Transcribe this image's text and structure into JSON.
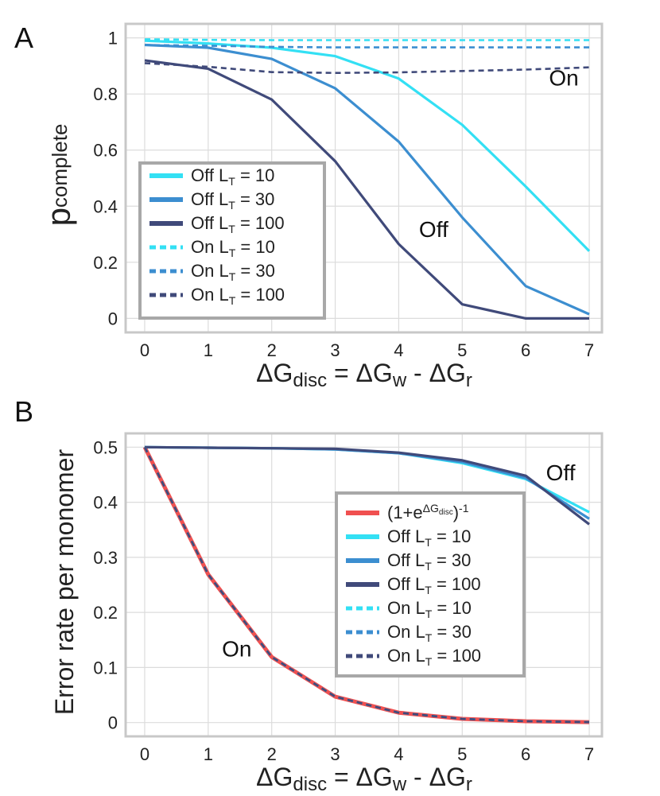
{
  "colors": {
    "lt10": "#33e0f4",
    "lt30": "#3c8ed0",
    "lt100": "#404a7a",
    "formula": "#f05050",
    "frame": "#c8c8c8",
    "legend_frame": "#a8a8a8",
    "grid": "#dcdcdc"
  },
  "chart_data": [
    {
      "panel": "A",
      "type": "line",
      "xlabel": {
        "main": "ΔG",
        "sub": "disc",
        "eq": " = ΔG",
        "sub2": "w",
        "mid": " - ΔG",
        "sub3": "r"
      },
      "ylabel": {
        "main": "p",
        "sub": "complete"
      },
      "xlim": [
        -0.3,
        7.2
      ],
      "ylim": [
        -0.05,
        1.05
      ],
      "x_ticks": [
        "0",
        "1",
        "2",
        "3",
        "4",
        "5",
        "6",
        "7"
      ],
      "y_ticks": [
        {
          "v": 0,
          "label": "0"
        },
        {
          "v": 0.2,
          "label": "0.2"
        },
        {
          "v": 0.4,
          "label": "0.4"
        },
        {
          "v": 0.6,
          "label": "0.6"
        },
        {
          "v": 0.8,
          "label": "0.8"
        },
        {
          "v": 1,
          "label": "1"
        }
      ],
      "grid": true,
      "legend_position": "lower-left",
      "x": [
        0,
        1,
        2,
        3,
        4,
        5,
        6,
        7
      ],
      "series": [
        {
          "label": "Off L",
          "sub": "T",
          "tail": " = 10",
          "key": "lt10",
          "dash": false,
          "values": [
            0.99,
            0.98,
            0.965,
            0.935,
            0.855,
            0.69,
            0.47,
            0.24
          ]
        },
        {
          "label": "Off L",
          "sub": "T",
          "tail": " = 30",
          "key": "lt30",
          "dash": false,
          "values": [
            0.975,
            0.965,
            0.925,
            0.82,
            0.63,
            0.36,
            0.115,
            0.015
          ]
        },
        {
          "label": "Off L",
          "sub": "T",
          "tail": " = 100",
          "key": "lt100",
          "dash": false,
          "values": [
            0.92,
            0.89,
            0.78,
            0.56,
            0.265,
            0.05,
            0.0,
            0.0
          ]
        },
        {
          "label": "On L",
          "sub": "T",
          "tail": " = 10",
          "key": "lt10",
          "dash": true,
          "values": [
            0.995,
            0.993,
            0.992,
            0.992,
            0.992,
            0.992,
            0.992,
            0.992
          ]
        },
        {
          "label": "On L",
          "sub": "T",
          "tail": " = 30",
          "key": "lt30",
          "dash": true,
          "values": [
            0.975,
            0.972,
            0.968,
            0.966,
            0.966,
            0.966,
            0.966,
            0.966
          ]
        },
        {
          "label": "On L",
          "sub": "T",
          "tail": " = 100",
          "key": "lt100",
          "dash": true,
          "values": [
            0.91,
            0.897,
            0.878,
            0.875,
            0.877,
            0.882,
            0.887,
            0.895
          ]
        }
      ],
      "annotations": [
        {
          "text": "On",
          "x": 6.6,
          "y": 0.83
        },
        {
          "text": "Off",
          "x": 4.55,
          "y": 0.29
        }
      ]
    },
    {
      "panel": "B",
      "type": "line",
      "xlabel": {
        "main": "ΔG",
        "sub": "disc",
        "eq": " = ΔG",
        "sub2": "w",
        "mid": " - ΔG",
        "sub3": "r"
      },
      "ylabel": {
        "main": "Error rate per monomer"
      },
      "xlim": [
        -0.3,
        7.2
      ],
      "ylim": [
        -0.025,
        0.525
      ],
      "x_ticks": [
        "0",
        "1",
        "2",
        "3",
        "4",
        "5",
        "6",
        "7"
      ],
      "y_ticks": [
        {
          "v": 0,
          "label": "0"
        },
        {
          "v": 0.1,
          "label": "0.1"
        },
        {
          "v": 0.2,
          "label": "0.2"
        },
        {
          "v": 0.3,
          "label": "0.3"
        },
        {
          "v": 0.4,
          "label": "0.4"
        },
        {
          "v": 0.5,
          "label": "0.5"
        }
      ],
      "grid": true,
      "legend_position": "lower-right",
      "x": [
        0,
        1,
        2,
        3,
        4,
        5,
        6,
        7
      ],
      "formula_legend": {
        "pre": "(1+e",
        "sup": "ΔG",
        "supsub": "disc",
        "post": ")",
        "pow": "-1"
      },
      "series": [
        {
          "label": "formula",
          "key": "formula",
          "dash": false,
          "width": 5,
          "values": [
            0.5,
            0.269,
            0.119,
            0.047,
            0.018,
            0.0067,
            0.0025,
            0.0009
          ]
        },
        {
          "label": "Off L",
          "sub": "T",
          "tail": " = 10",
          "key": "lt10",
          "dash": false,
          "values": [
            0.5,
            0.499,
            0.498,
            0.496,
            0.489,
            0.471,
            0.442,
            0.382
          ]
        },
        {
          "label": "Off L",
          "sub": "T",
          "tail": " = 30",
          "key": "lt30",
          "dash": false,
          "values": [
            0.5,
            0.499,
            0.498,
            0.496,
            0.489,
            0.473,
            0.444,
            0.37
          ]
        },
        {
          "label": "Off L",
          "sub": "T",
          "tail": " = 100",
          "key": "lt100",
          "dash": false,
          "values": [
            0.5,
            0.499,
            0.498,
            0.497,
            0.49,
            0.476,
            0.448,
            0.36
          ]
        },
        {
          "label": "On L",
          "sub": "T",
          "tail": " = 10",
          "key": "lt10",
          "dash": true,
          "values": [
            0.5,
            0.269,
            0.119,
            0.047,
            0.018,
            0.0067,
            0.0025,
            0.0009
          ]
        },
        {
          "label": "On L",
          "sub": "T",
          "tail": " = 30",
          "key": "lt30",
          "dash": true,
          "values": [
            0.5,
            0.269,
            0.119,
            0.047,
            0.018,
            0.0067,
            0.0025,
            0.0009
          ]
        },
        {
          "label": "On L",
          "sub": "T",
          "tail": " = 100",
          "key": "lt100",
          "dash": true,
          "values": [
            0.5,
            0.269,
            0.119,
            0.047,
            0.018,
            0.0067,
            0.0025,
            0.0009
          ]
        }
      ],
      "annotations": [
        {
          "text": "Off",
          "x": 6.55,
          "y": 0.44
        },
        {
          "text": "On",
          "x": 1.45,
          "y": 0.12
        }
      ]
    }
  ]
}
